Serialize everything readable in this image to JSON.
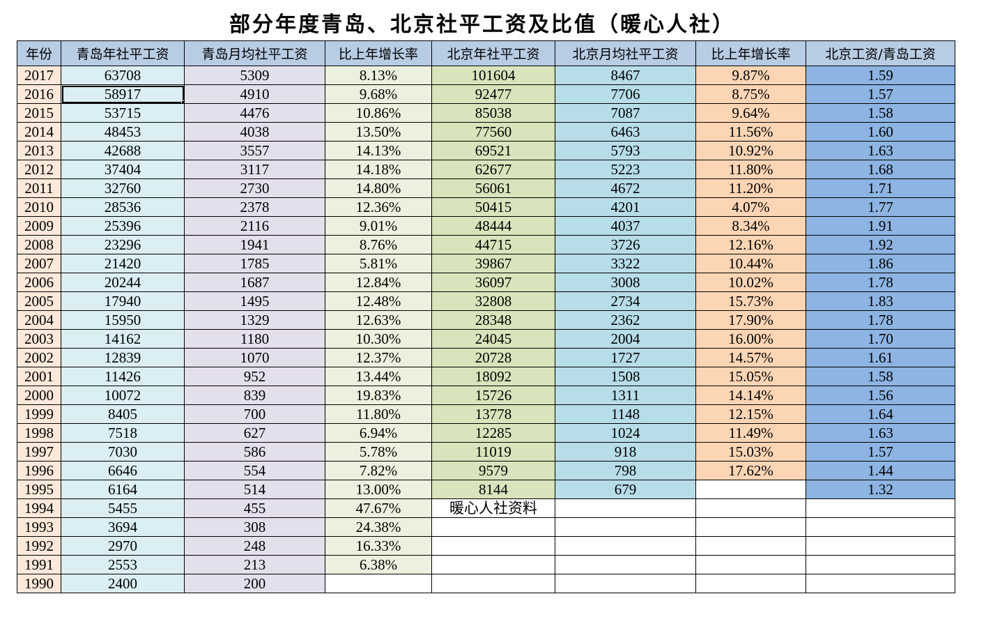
{
  "title": "部分年度青岛、北京社平工资及比值（暖心人社）",
  "colors": {
    "header": "#b8cce4",
    "year": "#fde9d9",
    "qd_annual": "#daeef3",
    "qd_month": "#e4dfec",
    "qd_growth": "#ebf1de",
    "bj_annual": "#d8e4bc",
    "bj_month": "#b7dde8",
    "bj_growth": "#fcd5b4",
    "ratio": "#8db4e2"
  },
  "headers": [
    "年份",
    "青岛年社平工资",
    "青岛月均社平工资",
    "比上年增长率",
    "北京年社平工资",
    "北京月均社平工资",
    "比上年增长率",
    "北京工资/青岛工资"
  ],
  "selected_cell": {
    "row": 1,
    "col": 1
  },
  "note": "暖心人社资料",
  "rows": [
    [
      "2017",
      "63708",
      "5309",
      "8.13%",
      "101604",
      "8467",
      "9.87%",
      "1.59"
    ],
    [
      "2016",
      "58917",
      "4910",
      "9.68%",
      "92477",
      "7706",
      "8.75%",
      "1.57"
    ],
    [
      "2015",
      "53715",
      "4476",
      "10.86%",
      "85038",
      "7087",
      "9.64%",
      "1.58"
    ],
    [
      "2014",
      "48453",
      "4038",
      "13.50%",
      "77560",
      "6463",
      "11.56%",
      "1.60"
    ],
    [
      "2013",
      "42688",
      "3557",
      "14.13%",
      "69521",
      "5793",
      "10.92%",
      "1.63"
    ],
    [
      "2012",
      "37404",
      "3117",
      "14.18%",
      "62677",
      "5223",
      "11.80%",
      "1.68"
    ],
    [
      "2011",
      "32760",
      "2730",
      "14.80%",
      "56061",
      "4672",
      "11.20%",
      "1.71"
    ],
    [
      "2010",
      "28536",
      "2378",
      "12.36%",
      "50415",
      "4201",
      "4.07%",
      "1.77"
    ],
    [
      "2009",
      "25396",
      "2116",
      "9.01%",
      "48444",
      "4037",
      "8.34%",
      "1.91"
    ],
    [
      "2008",
      "23296",
      "1941",
      "8.76%",
      "44715",
      "3726",
      "12.16%",
      "1.92"
    ],
    [
      "2007",
      "21420",
      "1785",
      "5.81%",
      "39867",
      "3322",
      "10.44%",
      "1.86"
    ],
    [
      "2006",
      "20244",
      "1687",
      "12.84%",
      "36097",
      "3008",
      "10.02%",
      "1.78"
    ],
    [
      "2005",
      "17940",
      "1495",
      "12.48%",
      "32808",
      "2734",
      "15.73%",
      "1.83"
    ],
    [
      "2004",
      "15950",
      "1329",
      "12.63%",
      "28348",
      "2362",
      "17.90%",
      "1.78"
    ],
    [
      "2003",
      "14162",
      "1180",
      "10.30%",
      "24045",
      "2004",
      "16.00%",
      "1.70"
    ],
    [
      "2002",
      "12839",
      "1070",
      "12.37%",
      "20728",
      "1727",
      "14.57%",
      "1.61"
    ],
    [
      "2001",
      "11426",
      "952",
      "13.44%",
      "18092",
      "1508",
      "15.05%",
      "1.58"
    ],
    [
      "2000",
      "10072",
      "839",
      "19.83%",
      "15726",
      "1311",
      "14.14%",
      "1.56"
    ],
    [
      "1999",
      "8405",
      "700",
      "11.80%",
      "13778",
      "1148",
      "12.15%",
      "1.64"
    ],
    [
      "1998",
      "7518",
      "627",
      "6.94%",
      "12285",
      "1024",
      "11.49%",
      "1.63"
    ],
    [
      "1997",
      "7030",
      "586",
      "5.78%",
      "11019",
      "918",
      "15.03%",
      "1.57"
    ],
    [
      "1996",
      "6646",
      "554",
      "7.82%",
      "9579",
      "798",
      "17.62%",
      "1.44"
    ],
    [
      "1995",
      "6164",
      "514",
      "13.00%",
      "8144",
      "679",
      "",
      "1.32"
    ],
    [
      "1994",
      "5455",
      "455",
      "47.67%",
      "暖心人社资料",
      "",
      "",
      ""
    ],
    [
      "1993",
      "3694",
      "308",
      "24.38%",
      "",
      "",
      "",
      ""
    ],
    [
      "1992",
      "2970",
      "248",
      "16.33%",
      "",
      "",
      "",
      ""
    ],
    [
      "1991",
      "2553",
      "213",
      "6.38%",
      "",
      "",
      "",
      ""
    ],
    [
      "1990",
      "2400",
      "200",
      "",
      "",
      "",
      "",
      ""
    ]
  ]
}
